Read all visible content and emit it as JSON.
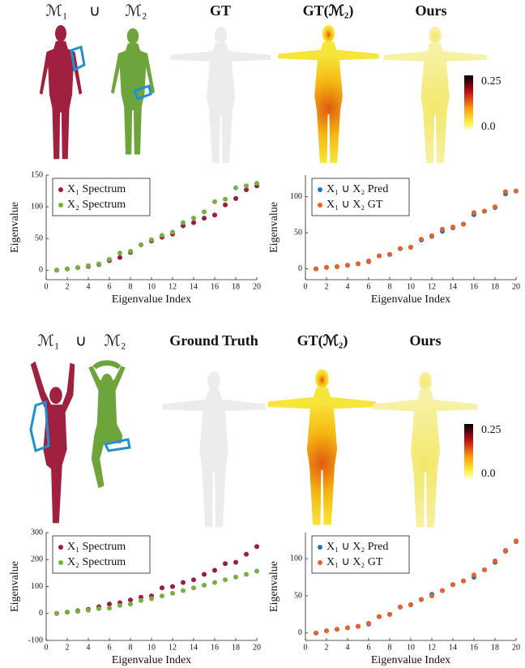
{
  "figure": {
    "rows": [
      {
        "labels": [
          "ℳ₁",
          "∪",
          "ℳ₂",
          "GT",
          "GT(ℳ₂)",
          "Ours"
        ],
        "colorbar": [
          "0.25",
          "0.0"
        ]
      },
      {
        "labels": [
          "ℳ₁",
          "∪",
          "ℳ₂",
          "Ground Truth",
          "GT(ℳ₂)",
          "Ours"
        ],
        "colorbar": [
          "0.25",
          "0.0"
        ]
      }
    ]
  },
  "chart_data": [
    {
      "type": "scatter",
      "xlabel": "Eigenvalue Index",
      "ylabel": "Eigenvalue",
      "x": [
        1,
        2,
        3,
        4,
        5,
        6,
        7,
        8,
        9,
        10,
        11,
        12,
        13,
        14,
        15,
        16,
        17,
        18,
        19,
        20
      ],
      "series": [
        {
          "name": "X₁ Spectrum",
          "color": "#9b1c3d",
          "values": [
            0,
            2,
            4,
            6,
            9,
            15,
            20,
            28,
            40,
            46,
            52,
            57,
            70,
            75,
            82,
            87,
            103,
            113,
            127,
            133
          ]
        },
        {
          "name": "X₂ Spectrum",
          "color": "#76b043",
          "values": [
            0,
            2,
            4,
            7,
            10,
            17,
            27,
            30,
            40,
            48,
            55,
            60,
            75,
            82,
            92,
            108,
            112,
            130,
            133,
            137
          ]
        }
      ],
      "xlim": [
        0,
        20
      ],
      "xticks": [
        0,
        2,
        4,
        6,
        8,
        10,
        12,
        14,
        16,
        18,
        20
      ],
      "ylim": [
        -15,
        150
      ],
      "yticks": [
        0,
        50,
        100,
        150
      ],
      "legend": "upper left"
    },
    {
      "type": "scatter",
      "xlabel": "Eigenvalue Index",
      "ylabel": "Eigenvalue",
      "x": [
        1,
        2,
        3,
        4,
        5,
        6,
        7,
        8,
        9,
        10,
        11,
        12,
        13,
        14,
        15,
        16,
        17,
        18,
        19,
        20
      ],
      "series": [
        {
          "name": "X₁ ∪ X₂ Pred",
          "color": "#1f77b4",
          "values": [
            0,
            2,
            3,
            5,
            7,
            10,
            18,
            20,
            28,
            30,
            40,
            45,
            52,
            57,
            62,
            75,
            80,
            85,
            104,
            108
          ]
        },
        {
          "name": "X₁ ∪ X₂ GT",
          "color": "#e8602c",
          "values": [
            0,
            2,
            3,
            5,
            7,
            11,
            18,
            20,
            28,
            30,
            41,
            46,
            55,
            58,
            62,
            78,
            80,
            86,
            107,
            108
          ]
        }
      ],
      "xlim": [
        0,
        20
      ],
      "xticks": [
        0,
        2,
        4,
        6,
        8,
        10,
        12,
        14,
        16,
        18,
        20
      ],
      "ylim": [
        -15,
        130
      ],
      "yticks": [
        0,
        50,
        100
      ],
      "legend": "upper left"
    },
    {
      "type": "scatter",
      "xlabel": "Eigenvalue Index",
      "ylabel": "Eigenvalue",
      "x": [
        1,
        2,
        3,
        4,
        5,
        6,
        7,
        8,
        9,
        10,
        11,
        12,
        13,
        14,
        15,
        16,
        17,
        18,
        19,
        20
      ],
      "series": [
        {
          "name": "X₁ Spectrum",
          "color": "#9b1c3d",
          "values": [
            0,
            5,
            10,
            15,
            25,
            35,
            40,
            50,
            60,
            65,
            95,
            100,
            115,
            125,
            145,
            160,
            185,
            190,
            220,
            248
          ]
        },
        {
          "name": "X₂ Spectrum",
          "color": "#76b043",
          "values": [
            0,
            5,
            8,
            12,
            18,
            20,
            30,
            35,
            48,
            55,
            65,
            75,
            85,
            95,
            105,
            115,
            125,
            135,
            145,
            157
          ]
        }
      ],
      "xlim": [
        0,
        20
      ],
      "xticks": [
        0,
        2,
        4,
        6,
        8,
        10,
        12,
        14,
        16,
        18,
        20
      ],
      "ylim": [
        -100,
        300
      ],
      "yticks": [
        -100,
        0,
        100,
        200,
        300
      ],
      "legend": "upper left"
    },
    {
      "type": "scatter",
      "xlabel": "Eigenvalue Index",
      "ylabel": "Eigenvalue",
      "x": [
        1,
        2,
        3,
        4,
        5,
        6,
        7,
        8,
        9,
        10,
        11,
        12,
        13,
        14,
        15,
        16,
        17,
        18,
        19,
        20
      ],
      "series": [
        {
          "name": "X₁ ∪ X₂ Pred",
          "color": "#1f77b4",
          "values": [
            0,
            3,
            5,
            7,
            9,
            12,
            22,
            25,
            35,
            38,
            45,
            52,
            57,
            65,
            70,
            75,
            85,
            95,
            110,
            123
          ]
        },
        {
          "name": "X₁ ∪ X₂ GT",
          "color": "#e8602c",
          "values": [
            0,
            3,
            5,
            7,
            9,
            13,
            22,
            25,
            35,
            38,
            45,
            50,
            57,
            65,
            70,
            78,
            85,
            97,
            111,
            124
          ]
        }
      ],
      "xlim": [
        0,
        20
      ],
      "xticks": [
        0,
        2,
        4,
        6,
        8,
        10,
        12,
        14,
        16,
        18,
        20
      ],
      "ylim": [
        -10,
        135
      ],
      "yticks": [
        0,
        50,
        100
      ],
      "legend": "upper left"
    }
  ]
}
